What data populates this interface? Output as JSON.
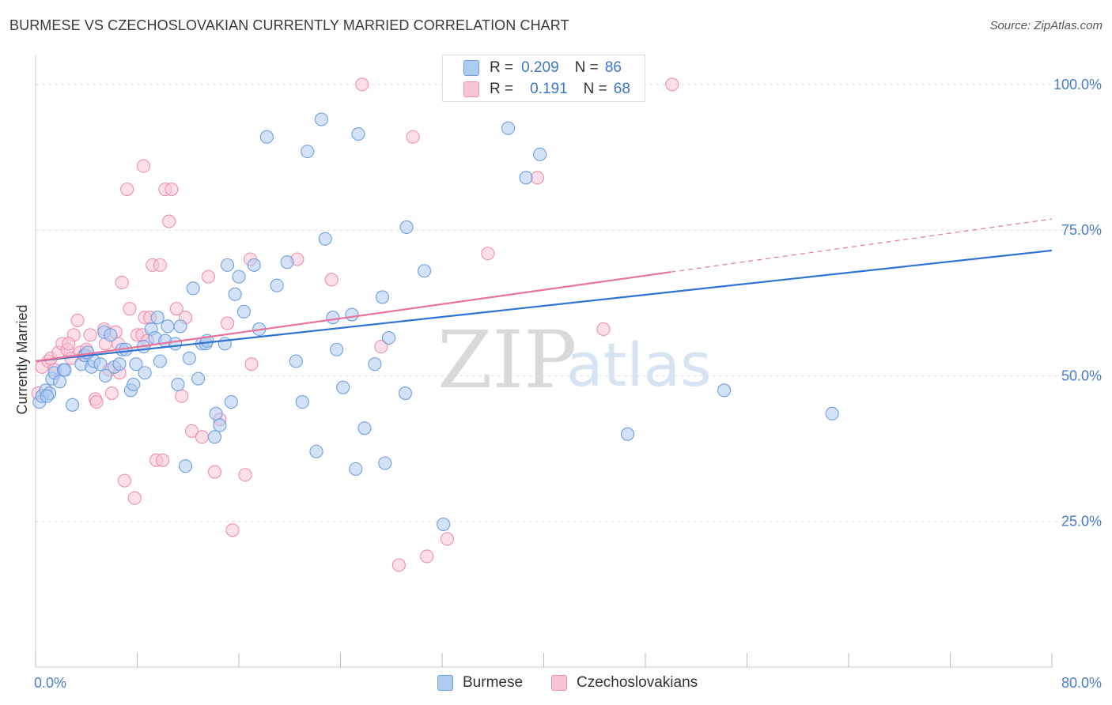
{
  "title": "BURMESE VS CZECHOSLOVAKIAN CURRENTLY MARRIED CORRELATION CHART",
  "source": "Source: ZipAtlas.com",
  "watermark": {
    "zip": "ZIP",
    "atlas": "atlas"
  },
  "legend_top": [
    {
      "r_label": "R =",
      "r_value": "0.209",
      "n_label": "N =",
      "n_value": "86"
    },
    {
      "r_label": "R =",
      "r_value": "0.191",
      "n_label": "N =",
      "n_value": "68"
    }
  ],
  "colors": {
    "burmese_fill": "#aecbf0",
    "burmese_stroke": "#6f9fe0",
    "burmese_line": "#2e73d4",
    "czech_fill": "#f9c5d5",
    "czech_stroke": "#ee8fab",
    "czech_line": "#e8729a",
    "grid": "#dcdcdc",
    "tick_label": "#4a7cc8"
  },
  "chart_data": {
    "type": "scatter",
    "title": "BURMESE VS CZECHOSLOVAKIAN CURRENTLY MARRIED CORRELATION CHART",
    "xlabel": "",
    "ylabel": "Currently Married",
    "xlim": [
      0,
      80
    ],
    "ylim": [
      0,
      105
    ],
    "x_tick_labels": [
      "0.0%",
      "80.0%"
    ],
    "y_ticks": [
      25,
      50,
      75,
      100
    ],
    "y_tick_labels": [
      "25.0%",
      "50.0%",
      "75.0%",
      "100.0%"
    ],
    "grid": true,
    "legend_position": "top-center",
    "series": [
      {
        "name": "Burmese",
        "r": 0.209,
        "n": 86,
        "trend": {
          "x0": 0,
          "y0": 52.5,
          "x1": 80,
          "y1": 71.5
        },
        "points": [
          [
            0.3,
            45.5
          ],
          [
            0.5,
            46.5
          ],
          [
            0.8,
            47.5
          ],
          [
            1.1,
            47
          ],
          [
            1.3,
            49.5
          ],
          [
            1.5,
            50.5
          ],
          [
            1.9,
            49
          ],
          [
            2.2,
            51
          ],
          [
            2.3,
            51
          ],
          [
            2.9,
            45
          ],
          [
            3.6,
            52
          ],
          [
            3.9,
            53.5
          ],
          [
            4.4,
            51.5
          ],
          [
            4.6,
            52.5
          ],
          [
            5.1,
            52
          ],
          [
            5.4,
            57.5
          ],
          [
            5.5,
            50
          ],
          [
            5.9,
            57
          ],
          [
            6.2,
            51.5
          ],
          [
            6.6,
            52
          ],
          [
            6.8,
            54.5
          ],
          [
            7.1,
            54.5
          ],
          [
            7.5,
            47.5
          ],
          [
            7.7,
            48.5
          ],
          [
            7.9,
            52
          ],
          [
            8.5,
            55
          ],
          [
            8.6,
            50.5
          ],
          [
            9.1,
            58
          ],
          [
            9.4,
            56.5
          ],
          [
            9.6,
            60
          ],
          [
            9.8,
            52.5
          ],
          [
            10.2,
            56
          ],
          [
            10.4,
            58.5
          ],
          [
            11,
            55.5
          ],
          [
            11.2,
            48.5
          ],
          [
            11.4,
            58.5
          ],
          [
            11.8,
            34.5
          ],
          [
            12.1,
            53
          ],
          [
            12.4,
            65
          ],
          [
            12.8,
            49.5
          ],
          [
            13.1,
            55.5
          ],
          [
            13.4,
            55.5
          ],
          [
            14.1,
            39.5
          ],
          [
            14.2,
            43.5
          ],
          [
            14.5,
            41.5
          ],
          [
            14.9,
            55.5
          ],
          [
            15.1,
            69
          ],
          [
            15.4,
            45.5
          ],
          [
            15.7,
            64
          ],
          [
            16,
            67
          ],
          [
            16.4,
            61
          ],
          [
            17.2,
            69
          ],
          [
            17.6,
            58
          ],
          [
            18.2,
            91
          ],
          [
            19,
            65.5
          ],
          [
            19.8,
            69.5
          ],
          [
            20.5,
            52.5
          ],
          [
            21,
            45.5
          ],
          [
            21.4,
            88.5
          ],
          [
            22.1,
            37
          ],
          [
            22.5,
            94
          ],
          [
            22.8,
            73.5
          ],
          [
            23.4,
            60
          ],
          [
            23.7,
            54.5
          ],
          [
            24.2,
            48
          ],
          [
            24.9,
            60.5
          ],
          [
            25.2,
            34
          ],
          [
            25.4,
            91.5
          ],
          [
            25.9,
            41
          ],
          [
            26.7,
            52
          ],
          [
            27.3,
            63.5
          ],
          [
            27.5,
            35
          ],
          [
            27.8,
            56.5
          ],
          [
            29.1,
            47
          ],
          [
            29.2,
            75.5
          ],
          [
            30.6,
            68
          ],
          [
            32.1,
            24.5
          ],
          [
            37.2,
            92.5
          ],
          [
            38.6,
            84
          ],
          [
            39.7,
            88
          ],
          [
            46.6,
            40
          ],
          [
            54.2,
            47.5
          ],
          [
            62.7,
            43.5
          ],
          [
            0.9,
            46.5
          ],
          [
            4.1,
            54
          ],
          [
            13.5,
            56
          ]
        ]
      },
      {
        "name": "Czechoslovakians",
        "r": 0.191,
        "n": 68,
        "trend": {
          "x0": 0,
          "y0": 52.5,
          "x1": 50,
          "y1": 67.8,
          "x_dash_end": 80,
          "y_dash_end": 76.9
        },
        "points": [
          [
            0.2,
            47
          ],
          [
            0.5,
            51.5
          ],
          [
            1,
            52.5
          ],
          [
            1.2,
            53
          ],
          [
            1.5,
            51
          ],
          [
            1.8,
            54
          ],
          [
            2.1,
            55.5
          ],
          [
            2.5,
            54.5
          ],
          [
            2.8,
            53
          ],
          [
            3,
            57
          ],
          [
            3.3,
            59.5
          ],
          [
            3.5,
            54
          ],
          [
            4,
            54.5
          ],
          [
            4.3,
            57
          ],
          [
            4.7,
            46
          ],
          [
            4.8,
            45.5
          ],
          [
            5.4,
            58
          ],
          [
            5.5,
            55.5
          ],
          [
            5.8,
            51
          ],
          [
            6,
            47
          ],
          [
            6.3,
            57.5
          ],
          [
            6.5,
            55.5
          ],
          [
            6.6,
            50.5
          ],
          [
            6.8,
            66
          ],
          [
            7,
            32
          ],
          [
            7.2,
            82
          ],
          [
            7.4,
            61.5
          ],
          [
            7.8,
            29
          ],
          [
            8,
            57
          ],
          [
            8.4,
            57
          ],
          [
            8.5,
            86
          ],
          [
            8.6,
            60
          ],
          [
            8.8,
            56
          ],
          [
            9,
            60
          ],
          [
            9.2,
            69
          ],
          [
            9.5,
            35.5
          ],
          [
            9.8,
            69
          ],
          [
            10,
            35.5
          ],
          [
            10.2,
            82
          ],
          [
            10.5,
            76.5
          ],
          [
            10.7,
            82
          ],
          [
            11.1,
            61.5
          ],
          [
            11.5,
            46.5
          ],
          [
            11.8,
            60
          ],
          [
            12.3,
            40.5
          ],
          [
            13.1,
            39.5
          ],
          [
            13.6,
            67
          ],
          [
            14.1,
            33.5
          ],
          [
            14.5,
            42.5
          ],
          [
            15.1,
            59
          ],
          [
            15.5,
            23.5
          ],
          [
            16.5,
            33
          ],
          [
            16.9,
            70
          ],
          [
            17,
            52
          ],
          [
            20.6,
            70
          ],
          [
            23.3,
            66.5
          ],
          [
            25.7,
            100
          ],
          [
            27.2,
            55
          ],
          [
            28.6,
            17.5
          ],
          [
            29.7,
            91
          ],
          [
            30.8,
            19
          ],
          [
            32.4,
            22
          ],
          [
            35.6,
            71
          ],
          [
            39.5,
            84
          ],
          [
            44.7,
            58
          ],
          [
            50.1,
            100
          ],
          [
            2.6,
            55.5
          ],
          [
            3.8,
            53.5
          ]
        ]
      }
    ]
  },
  "bottom_legend": [
    {
      "label": "Burmese"
    },
    {
      "label": "Czechoslovakians"
    }
  ]
}
